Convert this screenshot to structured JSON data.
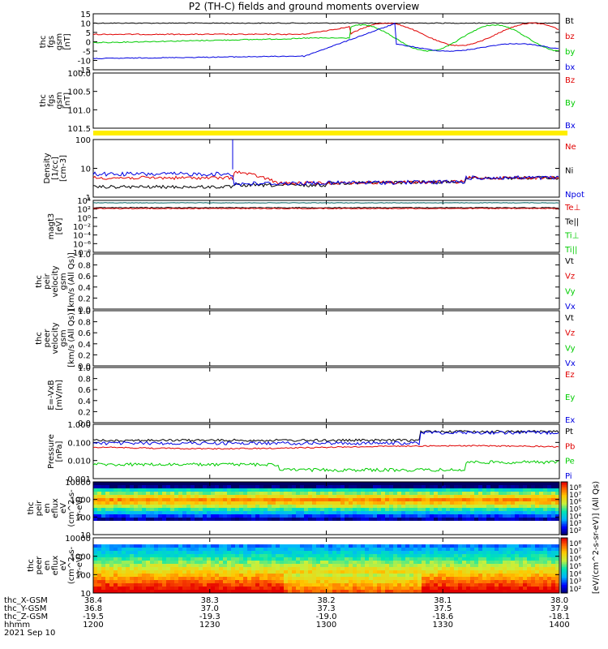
{
  "title": "P2 (TH-C) fields and ground moments overview",
  "x_ticks": [
    "1200",
    "1230",
    "1300",
    "1330",
    "1400"
  ],
  "footer": {
    "row_labels": [
      "thc_X-GSM",
      "thc_Y-GSM",
      "thc_Z-GSM",
      "hhmm",
      "2021 Sep 10"
    ],
    "rows": [
      [
        "38.4",
        "38.3",
        "38.2",
        "38.1",
        "38.0"
      ],
      [
        "36.8",
        "37.0",
        "37.3",
        "37.5",
        "37.9"
      ],
      [
        "-19.5",
        "-19.3",
        "-19.0",
        "-18.6",
        "-18.1"
      ]
    ]
  },
  "colors": {
    "black": "#000000",
    "red": "#e00000",
    "green": "#00cc00",
    "blue": "#0000e0",
    "yellow": "#ffee00"
  },
  "panels": [
    {
      "id": "fgs",
      "ylabel": [
        "thc",
        "fgs",
        "gsm",
        "[nT]"
      ],
      "yticks": [
        "15",
        "10",
        "5",
        "0",
        "-5",
        "-10",
        "-15"
      ],
      "legend": [
        {
          "t": "Bt",
          "c": "black"
        },
        {
          "t": "bz",
          "c": "red"
        },
        {
          "t": "by",
          "c": "green"
        },
        {
          "t": "bx",
          "c": "blue"
        }
      ]
    },
    {
      "id": "fgs2",
      "ylabel": [
        "thc",
        "fgs",
        "gsm",
        "[nT]"
      ],
      "yticks": [
        "100.0",
        "100.5",
        "101.0",
        "101.5"
      ],
      "legend": [
        {
          "t": "Bz",
          "c": "red"
        },
        {
          "t": "By",
          "c": "green"
        },
        {
          "t": "Bx",
          "c": "blue"
        }
      ]
    },
    {
      "id": "density",
      "ylabel": [
        "Density",
        "[1/cc]",
        "[cm-3]"
      ],
      "yticks": [
        "100",
        "10",
        "1"
      ],
      "legend": [
        {
          "t": "Ne",
          "c": "red"
        },
        {
          "t": "Ni",
          "c": "black"
        },
        {
          "t": "Npot",
          "c": "blue"
        }
      ]
    },
    {
      "id": "temp",
      "ylabel": [
        "magt3",
        "[eV]"
      ],
      "yticks": [
        "10⁴",
        "10²",
        "10⁰",
        "10⁻²",
        "10⁻⁴",
        "10⁻⁶",
        "10⁻⁸"
      ],
      "legend": [
        {
          "t": "Te⊥",
          "c": "red"
        },
        {
          "t": "Te||",
          "c": "black"
        },
        {
          "t": "Ti⊥",
          "c": "green"
        },
        {
          "t": "Ti||",
          "c": "green"
        }
      ]
    },
    {
      "id": "peir_v",
      "ylabel": [
        "thc",
        "peir",
        "velocity",
        "gsm",
        "[km/s (All Qs)]"
      ],
      "yticks": [
        "1.0",
        "0.8",
        "0.6",
        "0.4",
        "0.2",
        "0.0"
      ],
      "legend": [
        {
          "t": "Vt",
          "c": "black"
        },
        {
          "t": "Vz",
          "c": "red"
        },
        {
          "t": "Vy",
          "c": "green"
        },
        {
          "t": "Vx",
          "c": "blue"
        }
      ]
    },
    {
      "id": "peer_v",
      "ylabel": [
        "thc",
        "peer",
        "velocity",
        "gsm",
        "[km/s (All Qs)]"
      ],
      "yticks": [
        "1.0",
        "0.8",
        "0.6",
        "0.4",
        "0.2",
        "0.0"
      ],
      "legend": [
        {
          "t": "Vt",
          "c": "black"
        },
        {
          "t": "Vz",
          "c": "red"
        },
        {
          "t": "Vy",
          "c": "green"
        },
        {
          "t": "Vx",
          "c": "blue"
        }
      ]
    },
    {
      "id": "efield",
      "ylabel": [
        "E=-VxB",
        "[mV/m]"
      ],
      "yticks": [
        "1.0",
        "0.8",
        "0.6",
        "0.4",
        "0.2",
        "0.0"
      ],
      "legend": [
        {
          "t": "Ez",
          "c": "red"
        },
        {
          "t": "Ey",
          "c": "green"
        },
        {
          "t": "Ex",
          "c": "blue"
        }
      ]
    },
    {
      "id": "pressure",
      "ylabel": [
        "Pressure",
        "[nPa]"
      ],
      "yticks": [
        "1.000",
        "0.100",
        "0.010",
        "0.001"
      ],
      "legend": [
        {
          "t": "Pt",
          "c": "black"
        },
        {
          "t": "Pb",
          "c": "red"
        },
        {
          "t": "Pe",
          "c": "green"
        },
        {
          "t": "Pi",
          "c": "blue"
        }
      ]
    },
    {
      "id": "peir_spec",
      "ylabel": [
        "thc",
        "peir",
        "en",
        "eflux",
        "eV",
        "(cm^2-s-",
        "sr-eV)"
      ],
      "yticks": [
        "10000",
        "1000",
        "100",
        "10"
      ],
      "cbar_label": "[eV/(cm^2-s-sr-eV)] (All Qs)",
      "cbar_ticks": [
        "10⁸",
        "10⁷",
        "10⁶",
        "10⁵",
        "10⁴",
        "10³",
        "10²"
      ]
    },
    {
      "id": "peer_spec",
      "ylabel": [
        "thc",
        "peer",
        "en",
        "eflux",
        "eV",
        "(cm^2-s-",
        "sr-eV)"
      ],
      "yticks": [
        "10000",
        "1000",
        "100",
        "10"
      ],
      "cbar_label": "[eV/(cm^2-s-sr-eV)] (All Qs)",
      "cbar_ticks": [
        "10⁸",
        "10⁷",
        "10⁶",
        "10⁵",
        "10⁴",
        "10³",
        "10²"
      ]
    }
  ],
  "chart_data": {
    "type": "line",
    "title": "P2 (TH-C) fields and ground moments overview",
    "x": [
      "1200",
      "1230",
      "1300",
      "1330",
      "1400"
    ],
    "series": [
      {
        "name": "Bt",
        "values": [
          10,
          10,
          10,
          10,
          10
        ]
      },
      {
        "name": "bz",
        "values": [
          4,
          4,
          4,
          10,
          10
        ]
      },
      {
        "name": "by",
        "values": [
          -2,
          0,
          3,
          -3,
          5
        ]
      },
      {
        "name": "bx",
        "values": [
          -9,
          -8,
          -7,
          0,
          -5
        ]
      },
      {
        "name": "Ne",
        "values": [
          8,
          3,
          1.5,
          2,
          4
        ]
      },
      {
        "name": "Ni",
        "values": [
          1.5,
          1.5,
          1.5,
          2,
          4
        ]
      },
      {
        "name": "Npot",
        "values": [
          8,
          2,
          1.5,
          2,
          4
        ]
      },
      {
        "name": "Pt",
        "values": [
          0.15,
          0.12,
          0.11,
          0.15,
          0.4
        ]
      },
      {
        "name": "Pb",
        "values": [
          0.08,
          0.05,
          0.05,
          0.05,
          0.05
        ]
      },
      {
        "name": "Pe",
        "values": [
          0.006,
          0.005,
          0.003,
          0.005,
          0.01
        ]
      },
      {
        "name": "Pi",
        "values": [
          0.1,
          0.08,
          0.08,
          0.1,
          0.4
        ]
      }
    ]
  }
}
